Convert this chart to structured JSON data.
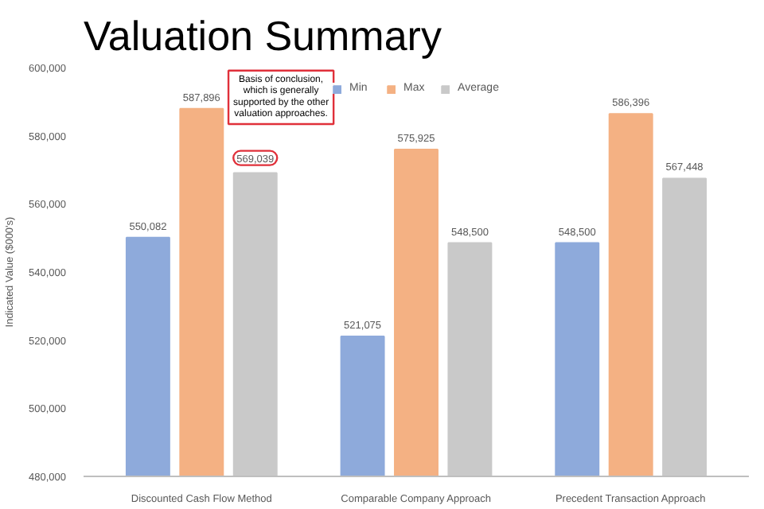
{
  "chart_data": {
    "type": "bar",
    "title": "Valuation Summary",
    "ylabel": "Indicated Value ($000's)",
    "categories": [
      "Discounted Cash Flow Method",
      "Comparable Company Approach",
      "Precedent Transaction Approach"
    ],
    "series": [
      {
        "name": "Min",
        "color": "#8eaadb",
        "values": [
          550082,
          521075,
          548500
        ],
        "value_labels": [
          "550,082",
          "521,075",
          "548,500"
        ]
      },
      {
        "name": "Max",
        "color": "#f4b183",
        "values": [
          587896,
          575925,
          586396
        ],
        "value_labels": [
          "587,896",
          "575,925",
          "586,396"
        ]
      },
      {
        "name": "Average",
        "color": "#c9c9c9",
        "values": [
          569039,
          548500,
          567448
        ],
        "value_labels": [
          "569,039",
          "548,500",
          "567,448"
        ]
      }
    ],
    "ylim": [
      480000,
      600000
    ],
    "yticks": [
      {
        "value": 480000,
        "label": "480,000"
      },
      {
        "value": 500000,
        "label": "500,000"
      },
      {
        "value": 520000,
        "label": "520,000"
      },
      {
        "value": 540000,
        "label": "540,000"
      },
      {
        "value": 560000,
        "label": "560,000"
      },
      {
        "value": 580000,
        "label": "580,000"
      },
      {
        "value": 600000,
        "label": "600,000"
      }
    ],
    "grid": false,
    "legend": "top",
    "annotations": [
      "Basis of conclusion,\nwhich is generally\nsupported by the other\nvaluation approaches."
    ]
  }
}
